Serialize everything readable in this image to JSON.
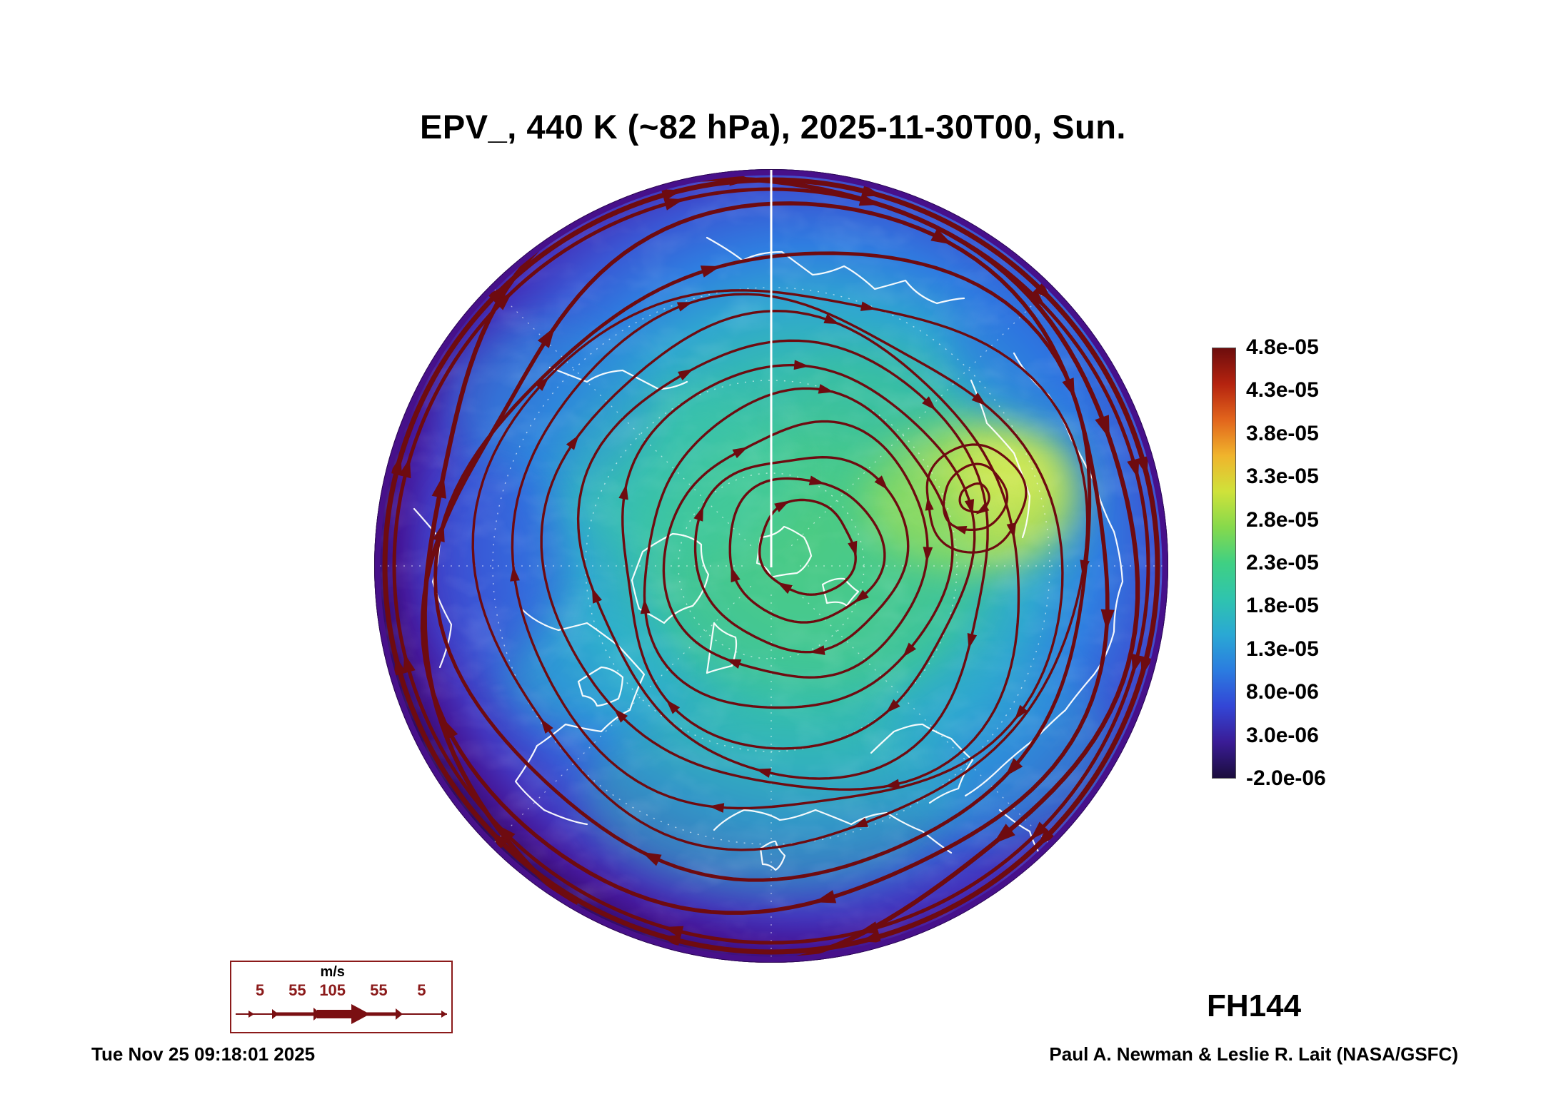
{
  "title": "EPV_, 440 K (~82 hPa), 2025-11-30T00, Sun.",
  "forecast_hour_label": "FH144",
  "footer": {
    "generated": "Tue Nov 25 09:18:01 2025",
    "credit": "Paul A. Newman & Leslie R. Lait (NASA/GSFC)"
  },
  "chart_data": {
    "type": "heatmap",
    "title": "EPV_, 440 K (~82 hPa), 2025-11-30T00, Sun.",
    "variable": "EPV_",
    "level": "440 K (~82 hPa)",
    "valid_time": "2025-11-30T00",
    "valid_day": "Sun.",
    "forecast_hour": "FH144",
    "projection": "north polar circular hemisphere view",
    "legend_position": "right",
    "colorbar_ticks": [
      "4.8e-05",
      "4.3e-05",
      "3.8e-05",
      "3.3e-05",
      "2.8e-05",
      "2.3e-05",
      "1.8e-05",
      "1.3e-05",
      "8.0e-06",
      "3.0e-06",
      "-2.0e-06"
    ],
    "colorbar_range": [
      -2e-06,
      4.8e-05
    ],
    "colorbar_colors_top_to_bottom": [
      "#6d0d0d",
      "#b5230f",
      "#e2651c",
      "#f0b42c",
      "#cfe23a",
      "#86d94c",
      "#3fd083",
      "#2fc4ae",
      "#2aa8d4",
      "#2b7ce0",
      "#3346d6",
      "#3a1c96",
      "#1b0d3d"
    ],
    "overlays": [
      "wind streamlines with arrowheads (dark red)",
      "coastlines (white)",
      "graticule (white dotted)"
    ],
    "wind_legend": {
      "unit": "m/s",
      "values": [
        5,
        55,
        105,
        55,
        5
      ]
    }
  },
  "colors": {
    "streamline": "#6e0b10",
    "coastline": "#ffffff",
    "rim_purple": "#47108a",
    "rim_dark": "#2d0a52",
    "legend_maroon": "#8b1a1a",
    "text": "#000000"
  }
}
